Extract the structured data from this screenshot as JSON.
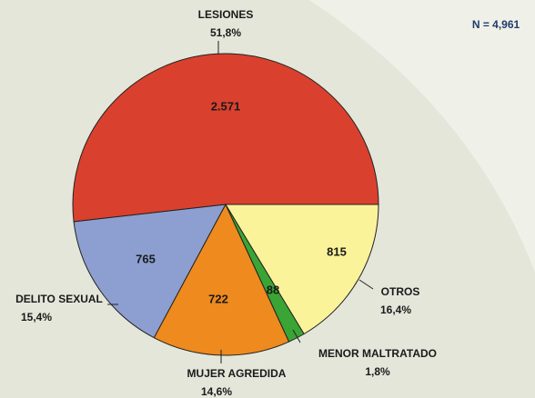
{
  "chart_data": {
    "type": "pie",
    "annotation": "N = 4,961",
    "categories": [
      "LESIONES",
      "DELITO SEXUAL",
      "MUJER AGREDIDA",
      "MENOR MALTRATADO",
      "OTROS"
    ],
    "values": [
      2571,
      765,
      722,
      88,
      815
    ],
    "value_labels": [
      "2.571",
      "765",
      "722",
      "88",
      "815"
    ],
    "percent_labels": [
      "51,8%",
      "15,4%",
      "14,6%",
      "1,8%",
      "16,4%"
    ],
    "colors": [
      "#d9412e",
      "#8d9fd0",
      "#ee8a1e",
      "#3aa535",
      "#faf39a"
    ]
  }
}
